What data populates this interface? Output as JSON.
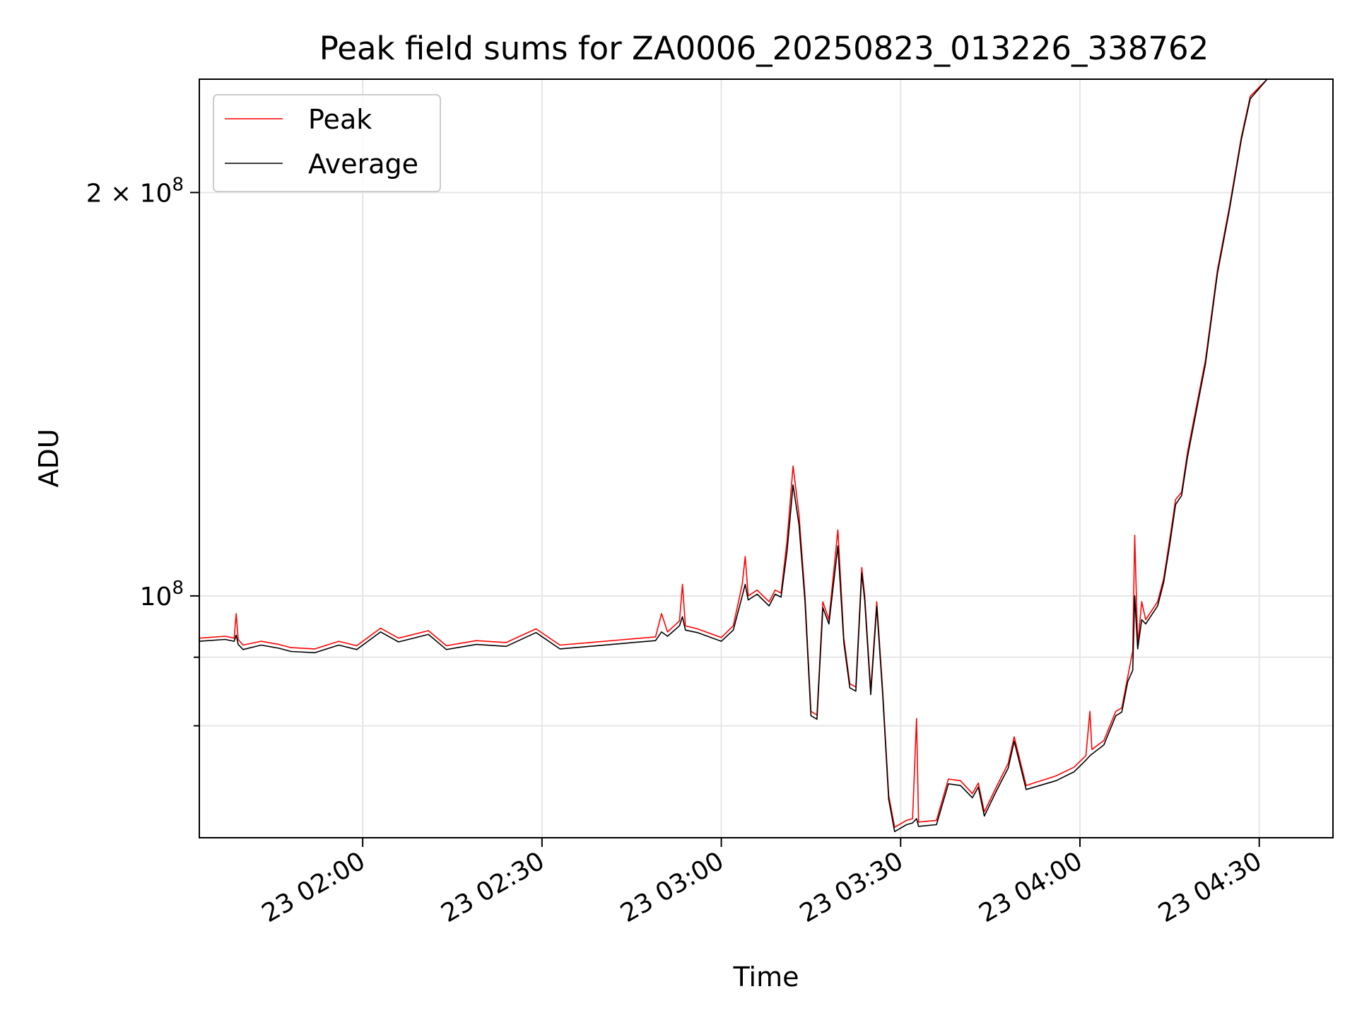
{
  "chart_data": {
    "type": "line",
    "title": "Peak field sums for ZA0006_20250823_013226_338762",
    "xlabel": "Time",
    "ylabel": "ADU",
    "y_scale": "log",
    "ylim": [
      66000000,
      243000000
    ],
    "xlim": [
      "23 01:32:40",
      "23 04:42:20"
    ],
    "grid": true,
    "legend_position": "top-left",
    "x_ticks": [
      {
        "value": "23 02:00",
        "label": "23 02:00"
      },
      {
        "value": "23 02:30",
        "label": "23 02:30"
      },
      {
        "value": "23 03:00",
        "label": "23 03:00"
      },
      {
        "value": "23 03:30",
        "label": "23 03:30"
      },
      {
        "value": "23 04:00",
        "label": "23 04:00"
      },
      {
        "value": "23 04:30",
        "label": "23 04:30"
      }
    ],
    "y_ticks_major": [
      {
        "value": 100000000,
        "label_base": "10",
        "label_exp": "8"
      },
      {
        "value": 200000000,
        "label_base": "2 × 10",
        "label_exp": "8"
      }
    ],
    "y_ticks_minor": [
      80000000,
      90000000
    ],
    "series": [
      {
        "name": "Peak",
        "color": "#ff0000",
        "points": [
          [
            "23 01:32:40",
            93000000
          ],
          [
            "23 01:37:00",
            93300000
          ],
          [
            "23 01:38:30",
            93000000
          ],
          [
            "23 01:38:50",
            97000000
          ],
          [
            "23 01:39:10",
            92800000
          ],
          [
            "23 01:40:00",
            91900000
          ],
          [
            "23 01:43:00",
            92500000
          ],
          [
            "23 01:46:00",
            92000000
          ],
          [
            "23 01:48:00",
            91500000
          ],
          [
            "23 01:52:00",
            91300000
          ],
          [
            "23 01:56:00",
            92500000
          ],
          [
            "23 01:59:00",
            91800000
          ],
          [
            "23 02:03:00",
            94600000
          ],
          [
            "23 02:06:00",
            93000000
          ],
          [
            "23 02:11:00",
            94200000
          ],
          [
            "23 02:14:00",
            91800000
          ],
          [
            "23 02:19:00",
            92600000
          ],
          [
            "23 02:24:00",
            92300000
          ],
          [
            "23 02:29:00",
            94500000
          ],
          [
            "23 02:33:00",
            91900000
          ],
          [
            "23 02:38:00",
            92300000
          ],
          [
            "23 02:44:00",
            92800000
          ],
          [
            "23 02:49:00",
            93200000
          ],
          [
            "23 02:50:00",
            97000000
          ],
          [
            "23 02:51:00",
            94000000
          ],
          [
            "23 02:53:00",
            95800000
          ],
          [
            "23 02:53:30",
            102000000
          ],
          [
            "23 02:54:00",
            95000000
          ],
          [
            "23 02:56:00",
            94500000
          ],
          [
            "23 03:00:00",
            93100000
          ],
          [
            "23 03:02:00",
            95000000
          ],
          [
            "23 03:03:30",
            102000000
          ],
          [
            "23 03:04:00",
            107000000
          ],
          [
            "23 03:04:30",
            100000000
          ],
          [
            "23 03:06:00",
            101000000
          ],
          [
            "23 03:08:00",
            99000000
          ],
          [
            "23 03:09:00",
            101000000
          ],
          [
            "23 03:10:00",
            100500000
          ],
          [
            "23 03:11:00",
            110000000
          ],
          [
            "23 03:12:00",
            125000000
          ],
          [
            "23 03:13:00",
            115000000
          ],
          [
            "23 03:14:00",
            100000000
          ],
          [
            "23 03:15:00",
            82000000
          ],
          [
            "23 03:16:00",
            81500000
          ],
          [
            "23 03:17:00",
            99000000
          ],
          [
            "23 03:18:00",
            96000000
          ],
          [
            "23 03:19:30",
            112000000
          ],
          [
            "23 03:20:30",
            93000000
          ],
          [
            "23 03:21:30",
            86000000
          ],
          [
            "23 03:22:30",
            85500000
          ],
          [
            "23 03:23:30",
            105000000
          ],
          [
            "23 03:24:00",
            100000000
          ],
          [
            "23 03:25:00",
            85000000
          ],
          [
            "23 03:26:00",
            99000000
          ],
          [
            "23 03:27:00",
            85000000
          ],
          [
            "23 03:28:00",
            71000000
          ],
          [
            "23 03:29:00",
            67200000
          ],
          [
            "23 03:31:00",
            68000000
          ],
          [
            "23 03:32:00",
            68200000
          ],
          [
            "23 03:32:40",
            81000000
          ],
          [
            "23 03:33:00",
            67800000
          ],
          [
            "23 03:36:00",
            68000000
          ],
          [
            "23 03:38:00",
            73000000
          ],
          [
            "23 03:40:00",
            72800000
          ],
          [
            "23 03:42:00",
            71200000
          ],
          [
            "23 03:43:00",
            72500000
          ],
          [
            "23 03:44:00",
            69000000
          ],
          [
            "23 03:46:00",
            72000000
          ],
          [
            "23 03:48:00",
            75000000
          ],
          [
            "23 03:49:00",
            78500000
          ],
          [
            "23 03:51:00",
            72200000
          ],
          [
            "23 03:56:00",
            73400000
          ],
          [
            "23 03:59:00",
            74500000
          ],
          [
            "23 04:01:00",
            76000000
          ],
          [
            "23 04:01:40",
            82000000
          ],
          [
            "23 04:02:00",
            76800000
          ],
          [
            "23 04:04:00",
            78000000
          ],
          [
            "23 04:06:00",
            82000000
          ],
          [
            "23 04:07:00",
            82500000
          ],
          [
            "23 04:08:00",
            87000000
          ],
          [
            "23 04:08:50",
            91000000
          ],
          [
            "23 04:09:10",
            111000000
          ],
          [
            "23 04:09:40",
            92000000
          ],
          [
            "23 04:10:20",
            99000000
          ],
          [
            "23 04:11:00",
            96000000
          ],
          [
            "23 04:13:00",
            99000000
          ],
          [
            "23 04:14:00",
            103000000
          ],
          [
            "23 04:15:00",
            110000000
          ],
          [
            "23 04:16:00",
            118000000
          ],
          [
            "23 04:17:00",
            119500000
          ],
          [
            "23 04:18:00",
            128000000
          ],
          [
            "23 04:19:00",
            135000000
          ],
          [
            "23 04:21:00",
            150000000
          ],
          [
            "23 04:23:00",
            175000000
          ],
          [
            "23 04:25:00",
            195000000
          ],
          [
            "23 04:27:00",
            220000000
          ],
          [
            "23 04:28:30",
            236000000
          ],
          [
            "23 04:31:20",
            243000000
          ]
        ]
      },
      {
        "name": "Average",
        "color": "#000000",
        "points": [
          [
            "23 01:32:40",
            92500000
          ],
          [
            "23 01:37:00",
            92800000
          ],
          [
            "23 01:38:30",
            92500000
          ],
          [
            "23 01:38:50",
            93500000
          ],
          [
            "23 01:39:10",
            92000000
          ],
          [
            "23 01:40:00",
            91200000
          ],
          [
            "23 01:43:00",
            91900000
          ],
          [
            "23 01:46:00",
            91400000
          ],
          [
            "23 01:48:00",
            90900000
          ],
          [
            "23 01:52:00",
            90700000
          ],
          [
            "23 01:56:00",
            91900000
          ],
          [
            "23 01:59:00",
            91200000
          ],
          [
            "23 02:03:00",
            94000000
          ],
          [
            "23 02:06:00",
            92400000
          ],
          [
            "23 02:11:00",
            93600000
          ],
          [
            "23 02:14:00",
            91200000
          ],
          [
            "23 02:19:00",
            92000000
          ],
          [
            "23 02:24:00",
            91700000
          ],
          [
            "23 02:29:00",
            93900000
          ],
          [
            "23 02:33:00",
            91300000
          ],
          [
            "23 02:38:00",
            91700000
          ],
          [
            "23 02:44:00",
            92200000
          ],
          [
            "23 02:49:00",
            92600000
          ],
          [
            "23 02:50:00",
            94000000
          ],
          [
            "23 02:51:00",
            93300000
          ],
          [
            "23 02:53:00",
            95000000
          ],
          [
            "23 02:53:30",
            96500000
          ],
          [
            "23 02:54:00",
            94300000
          ],
          [
            "23 02:56:00",
            93900000
          ],
          [
            "23 03:00:00",
            92500000
          ],
          [
            "23 03:02:00",
            94300000
          ],
          [
            "23 03:03:30",
            100000000
          ],
          [
            "23 03:04:00",
            102000000
          ],
          [
            "23 03:04:30",
            99300000
          ],
          [
            "23 03:06:00",
            100300000
          ],
          [
            "23 03:08:00",
            98300000
          ],
          [
            "23 03:09:00",
            100300000
          ],
          [
            "23 03:10:00",
            99800000
          ],
          [
            "23 03:11:00",
            108000000
          ],
          [
            "23 03:12:00",
            121000000
          ],
          [
            "23 03:13:00",
            113000000
          ],
          [
            "23 03:14:00",
            99000000
          ],
          [
            "23 03:15:00",
            81400000
          ],
          [
            "23 03:16:00",
            80900000
          ],
          [
            "23 03:17:00",
            98000000
          ],
          [
            "23 03:18:00",
            95300000
          ],
          [
            "23 03:19:30",
            109000000
          ],
          [
            "23 03:20:30",
            92300000
          ],
          [
            "23 03:21:30",
            85400000
          ],
          [
            "23 03:22:30",
            84900000
          ],
          [
            "23 03:23:30",
            104000000
          ],
          [
            "23 03:24:00",
            99200000
          ],
          [
            "23 03:25:00",
            84400000
          ],
          [
            "23 03:26:00",
            98200000
          ],
          [
            "23 03:27:00",
            84400000
          ],
          [
            "23 03:28:00",
            70500000
          ],
          [
            "23 03:29:00",
            66700000
          ],
          [
            "23 03:31:00",
            67500000
          ],
          [
            "23 03:32:00",
            67700000
          ],
          [
            "23 03:32:40",
            68200000
          ],
          [
            "23 03:33:00",
            67300000
          ],
          [
            "23 03:36:00",
            67500000
          ],
          [
            "23 03:38:00",
            72400000
          ],
          [
            "23 03:40:00",
            72200000
          ],
          [
            "23 03:42:00",
            70700000
          ],
          [
            "23 03:43:00",
            72000000
          ],
          [
            "23 03:44:00",
            68500000
          ],
          [
            "23 03:46:00",
            71500000
          ],
          [
            "23 03:48:00",
            74400000
          ],
          [
            "23 03:49:00",
            77900000
          ],
          [
            "23 03:51:00",
            71700000
          ],
          [
            "23 03:56:00",
            72800000
          ],
          [
            "23 03:59:00",
            73900000
          ],
          [
            "23 04:01:00",
            75400000
          ],
          [
            "23 04:01:40",
            76000000
          ],
          [
            "23 04:02:00",
            76200000
          ],
          [
            "23 04:04:00",
            77400000
          ],
          [
            "23 04:06:00",
            81400000
          ],
          [
            "23 04:07:00",
            81900000
          ],
          [
            "23 04:08:00",
            86300000
          ],
          [
            "23 04:08:50",
            88000000
          ],
          [
            "23 04:09:10",
            100000000
          ],
          [
            "23 04:09:40",
            91300000
          ],
          [
            "23 04:10:20",
            96000000
          ],
          [
            "23 04:11:00",
            95300000
          ],
          [
            "23 04:13:00",
            98300000
          ],
          [
            "23 04:14:00",
            102300000
          ],
          [
            "23 04:15:00",
            109000000
          ],
          [
            "23 04:16:00",
            117000000
          ],
          [
            "23 04:17:00",
            118800000
          ],
          [
            "23 04:18:00",
            127000000
          ],
          [
            "23 04:19:00",
            134000000
          ],
          [
            "23 04:21:00",
            149000000
          ],
          [
            "23 04:23:00",
            174000000
          ],
          [
            "23 04:25:00",
            194000000
          ],
          [
            "23 04:27:00",
            219000000
          ],
          [
            "23 04:28:30",
            235000000
          ],
          [
            "23 04:31:20",
            243000000
          ]
        ]
      }
    ]
  }
}
